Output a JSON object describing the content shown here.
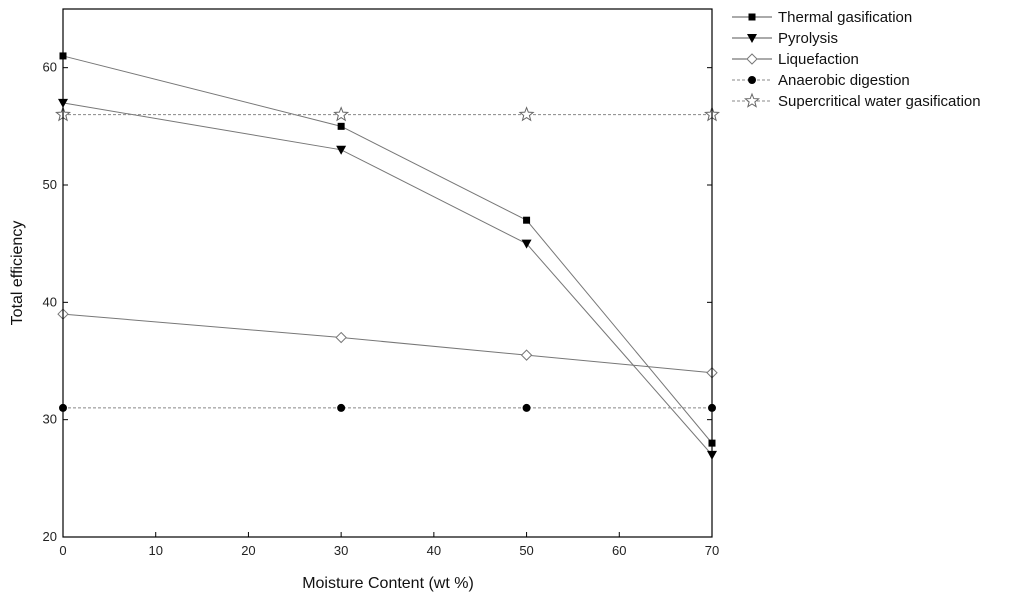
{
  "chart_data": {
    "type": "line",
    "xlabel": "Moisture Content (wt %)",
    "ylabel": "Total efficiency",
    "xlim": [
      0,
      70
    ],
    "ylim": [
      20,
      65
    ],
    "xticks": [
      0,
      10,
      20,
      30,
      40,
      50,
      60,
      70
    ],
    "yticks": [
      20,
      30,
      40,
      50,
      60
    ],
    "grid": false,
    "legend": "outside-top-right",
    "series": [
      {
        "name": "Thermal gasification",
        "marker": "square",
        "line": "solid",
        "x": [
          0,
          30,
          50,
          70
        ],
        "y": [
          61,
          55,
          47,
          28
        ]
      },
      {
        "name": "Pyrolysis",
        "marker": "triangle-down",
        "line": "solid",
        "x": [
          0,
          30,
          50,
          70
        ],
        "y": [
          57,
          53,
          45,
          27
        ]
      },
      {
        "name": "Liquefaction",
        "marker": "diamond-open",
        "line": "solid",
        "x": [
          0,
          30,
          50,
          70
        ],
        "y": [
          39,
          37,
          35.5,
          34
        ]
      },
      {
        "name": "Anaerobic digestion",
        "marker": "circle",
        "line": "dashed",
        "x": [
          0,
          30,
          50,
          70
        ],
        "y": [
          31,
          31,
          31,
          31
        ]
      },
      {
        "name": "Supercritical water gasification",
        "marker": "star-open",
        "line": "dashed",
        "x": [
          0,
          30,
          50,
          70
        ],
        "y": [
          56,
          56,
          56,
          56
        ]
      }
    ]
  }
}
